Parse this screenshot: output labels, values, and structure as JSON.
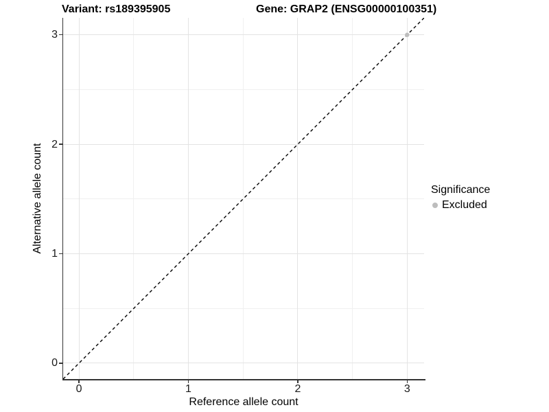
{
  "titles": {
    "variant": "Variant: rs189395905",
    "gene": "Gene: GRAP2 (ENSG00000100351)"
  },
  "chart_data": {
    "type": "scatter",
    "titles": [
      "Variant: rs189395905",
      "Gene: GRAP2 (ENSG00000100351)"
    ],
    "xlabel": "Reference allele count",
    "ylabel": "Alternative allele count",
    "xlim": [
      -0.145,
      3.155
    ],
    "ylim": [
      -0.145,
      3.155
    ],
    "x_major_ticks": [
      0,
      1,
      2,
      3
    ],
    "y_major_ticks": [
      0,
      1,
      2,
      3
    ],
    "x_tick_labels": [
      "0",
      "1",
      "2",
      "3"
    ],
    "y_tick_labels": [
      "0",
      "1",
      "2",
      "3"
    ],
    "x_minor_ticks": [
      0.5,
      1.5,
      2.5
    ],
    "y_minor_ticks": [
      0.5,
      1.5,
      2.5
    ],
    "grid": {
      "show": true,
      "major_color": "#e3e3e3",
      "minor_color": "#f0f0f0"
    },
    "axis_color": "#333333",
    "reference_line": {
      "type": "identity",
      "slope": 1,
      "intercept": 0,
      "style": "dashed",
      "color": "#000000"
    },
    "series": [
      {
        "name": "Excluded",
        "color": "#bdbdbd",
        "marker": "circle",
        "points": [
          [
            3,
            3
          ]
        ]
      }
    ],
    "legend": {
      "title": "Significance",
      "position": "right",
      "entries": [
        {
          "label": "Excluded",
          "color": "#bdbdbd",
          "marker": "circle"
        }
      ]
    }
  }
}
